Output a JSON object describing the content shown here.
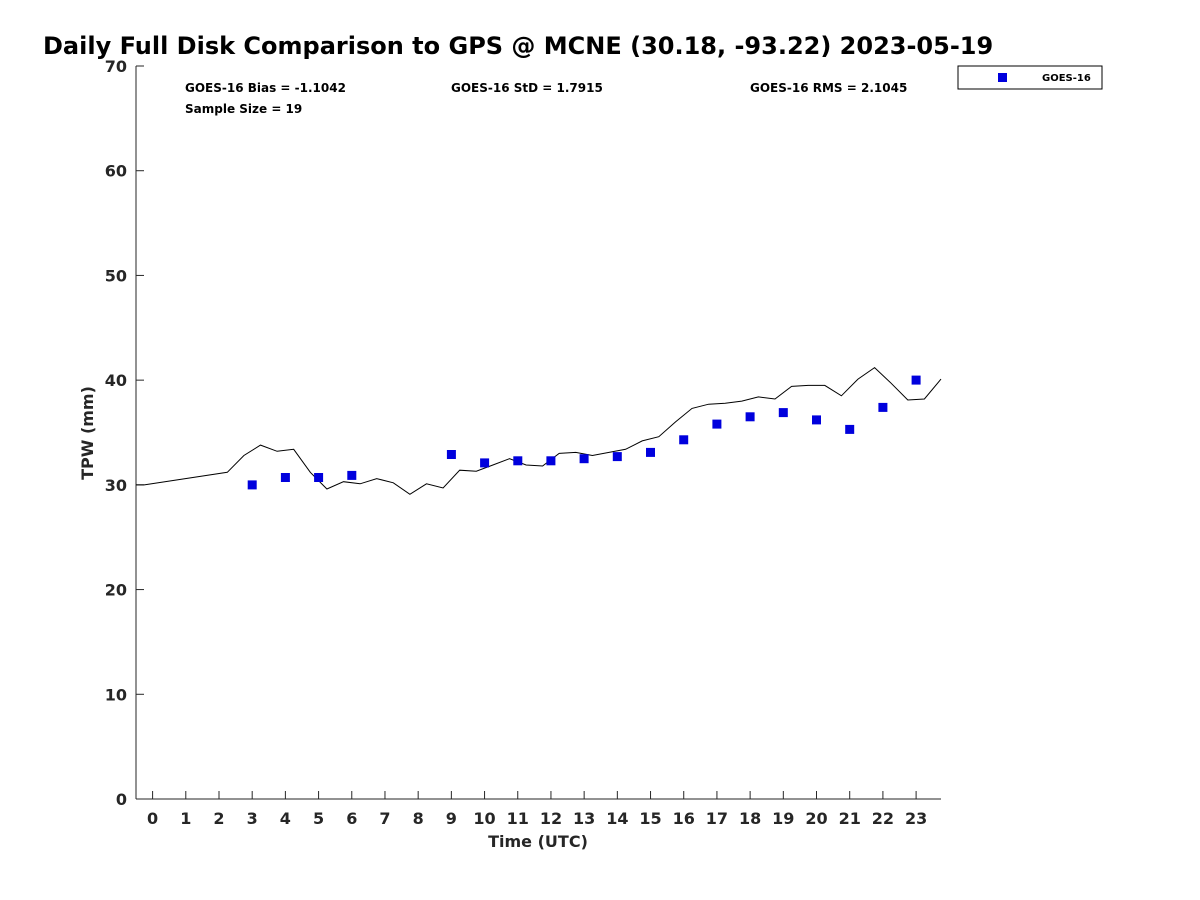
{
  "chart_data": {
    "type": "scatter",
    "title": "Daily Full Disk Comparison to GPS @ MCNE (30.18, -93.22) 2023-05-19",
    "xlabel": "Time (UTC)",
    "ylabel": "TPW (mm)",
    "xlim": [
      -0.5,
      23.75
    ],
    "ylim": [
      0,
      70
    ],
    "xticks": [
      0,
      1,
      2,
      3,
      4,
      5,
      6,
      7,
      8,
      9,
      10,
      11,
      12,
      13,
      14,
      15,
      16,
      17,
      18,
      19,
      20,
      21,
      22,
      23
    ],
    "yticks": [
      0,
      10,
      20,
      30,
      40,
      50,
      60,
      70
    ],
    "legend_position": "top-right, outside plot",
    "stats": {
      "bias": "GOES-16 Bias = -1.1042",
      "std": "GOES-16 StD = 1.7915",
      "rms": "GOES-16 RMS = 2.1045",
      "sample_size": "Sample Size = 19"
    },
    "series": [
      {
        "name": "GOES-16",
        "style": "marker",
        "color": "#0000dd",
        "points": [
          [
            3.0,
            30.0
          ],
          [
            4.0,
            30.7
          ],
          [
            5.0,
            30.7
          ],
          [
            6.0,
            30.9
          ],
          [
            9.0,
            32.9
          ],
          [
            10.0,
            32.1
          ],
          [
            11.0,
            32.3
          ],
          [
            12.0,
            32.3
          ],
          [
            13.0,
            32.5
          ],
          [
            14.0,
            32.7
          ],
          [
            15.0,
            33.1
          ],
          [
            16.0,
            34.3
          ],
          [
            17.0,
            35.8
          ],
          [
            18.0,
            36.5
          ],
          [
            19.0,
            36.9
          ],
          [
            20.0,
            36.2
          ],
          [
            21.0,
            35.3
          ],
          [
            22.0,
            37.4
          ],
          [
            23.0,
            40.0
          ]
        ]
      },
      {
        "style": "line",
        "color": "#000000",
        "points": [
          [
            -0.5,
            30.0
          ],
          [
            -0.25,
            30.0
          ],
          [
            2.25,
            31.2
          ],
          [
            2.75,
            32.8
          ],
          [
            3.25,
            33.8
          ],
          [
            3.75,
            33.2
          ],
          [
            4.25,
            33.4
          ],
          [
            4.75,
            31.2
          ],
          [
            5.25,
            29.6
          ],
          [
            5.75,
            30.3
          ],
          [
            6.25,
            30.1
          ],
          [
            6.75,
            30.6
          ],
          [
            7.25,
            30.2
          ],
          [
            7.75,
            29.1
          ],
          [
            8.25,
            30.1
          ],
          [
            8.75,
            29.7
          ],
          [
            9.25,
            31.4
          ],
          [
            9.75,
            31.3
          ],
          [
            10.25,
            31.9
          ],
          [
            10.75,
            32.5
          ],
          [
            11.25,
            31.9
          ],
          [
            11.75,
            31.8
          ],
          [
            12.25,
            33.0
          ],
          [
            12.75,
            33.1
          ],
          [
            13.25,
            32.8
          ],
          [
            13.75,
            33.1
          ],
          [
            14.25,
            33.4
          ],
          [
            14.75,
            34.2
          ],
          [
            15.25,
            34.6
          ],
          [
            15.75,
            36.0
          ],
          [
            16.25,
            37.3
          ],
          [
            16.75,
            37.7
          ],
          [
            17.25,
            37.8
          ],
          [
            17.75,
            38.0
          ],
          [
            18.25,
            38.4
          ],
          [
            18.75,
            38.2
          ],
          [
            19.25,
            39.4
          ],
          [
            19.75,
            39.5
          ],
          [
            20.25,
            39.5
          ],
          [
            20.75,
            38.5
          ],
          [
            21.25,
            40.1
          ],
          [
            21.75,
            41.2
          ],
          [
            22.25,
            39.7
          ],
          [
            22.75,
            38.1
          ],
          [
            23.25,
            38.2
          ],
          [
            23.75,
            40.1
          ]
        ]
      }
    ]
  }
}
